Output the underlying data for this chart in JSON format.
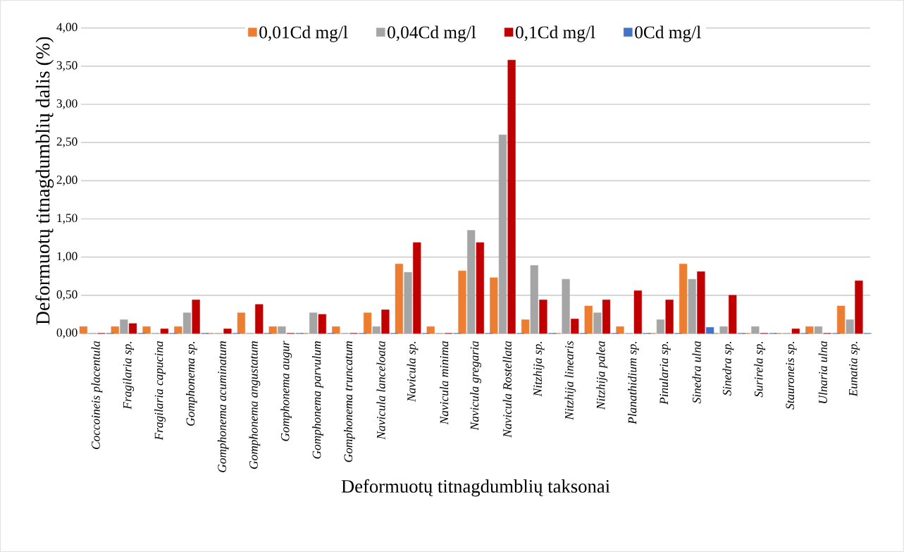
{
  "chart_data": {
    "type": "bar",
    "xlabel": "Deformuotų titnagdumblių taksonai",
    "ylabel": "Deformuotų titnagdumblių dalis (%)",
    "categories": [
      "Coccoineis placentula",
      "Fragilaria sp.",
      "Fragilaria capucina",
      "Gomphonema sp.",
      "Gomphonema acuminatum",
      "Gomphonema angustatum",
      "Gomphonema augur",
      "Gomphonema parvulum",
      "Gomphonema truncatum",
      "Navicula lanceloata",
      "Navicula sp.",
      "Navicula minima",
      "Navicula gregaria",
      "Navicula Rostellata",
      "Nitzhija sp.",
      "Nitzhija linearis",
      "Nitzhija palea",
      "Planathidium sp.",
      "Pinularia sp.",
      "Sinedra ulna",
      "Sinedra sp.",
      "Surirela sp.",
      "Stauroneis sp.",
      "Ulnaria ulna",
      "Eunatia sp."
    ],
    "series": [
      {
        "name": "0,01Cd mg/l",
        "color": "#ed7d31",
        "values": [
          0.09,
          0.09,
          0.09,
          0.09,
          0,
          0.27,
          0.09,
          0,
          0.09,
          0.27,
          0.91,
          0.09,
          0.82,
          0.73,
          0.18,
          0,
          0.36,
          0.09,
          0,
          0.91,
          0,
          0,
          0,
          0.09,
          0.36
        ]
      },
      {
        "name": "0,04Cd mg/l",
        "color": "#a5a5a5",
        "values": [
          0,
          0.18,
          0,
          0.27,
          0,
          0,
          0.09,
          0.27,
          0,
          0.09,
          0.8,
          0,
          1.35,
          2.6,
          0.89,
          0.71,
          0.27,
          0,
          0.18,
          0.71,
          0.09,
          0.09,
          0,
          0.09,
          0.18
        ]
      },
      {
        "name": "0,1Cd mg/l",
        "color": "#c00000",
        "values": [
          0,
          0.13,
          0.06,
          0.44,
          0.06,
          0.38,
          0,
          0.25,
          0,
          0.31,
          1.19,
          0,
          1.19,
          3.58,
          0.44,
          0.19,
          0.44,
          0.56,
          0.44,
          0.81,
          0.5,
          0,
          0.06,
          0,
          0.69
        ]
      },
      {
        "name": "0Cd mg/l",
        "color": "#4472c4",
        "values": [
          0,
          0,
          0,
          0,
          0,
          0,
          0,
          0,
          0,
          0,
          0,
          0,
          0,
          0,
          0,
          0,
          0,
          0,
          0,
          0.08,
          0,
          0,
          0,
          0,
          0
        ]
      }
    ],
    "ylim": [
      0,
      4
    ],
    "yticks": [
      {
        "value": 0,
        "label": "0,00"
      },
      {
        "value": 0.5,
        "label": "0,50"
      },
      {
        "value": 1,
        "label": "1,00"
      },
      {
        "value": 1.5,
        "label": "1,50"
      },
      {
        "value": 2,
        "label": "2,00"
      },
      {
        "value": 2.5,
        "label": "2,50"
      },
      {
        "value": 3,
        "label": "3,00"
      },
      {
        "value": 3.5,
        "label": "3,50"
      },
      {
        "value": 4,
        "label": "4,00"
      }
    ],
    "grid": "y",
    "legend": "top"
  }
}
